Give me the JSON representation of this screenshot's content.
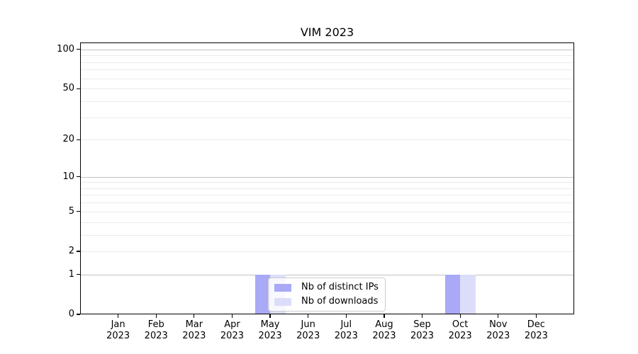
{
  "chart_data": {
    "type": "bar",
    "title": "VIM 2023",
    "categories": [
      {
        "month": "Jan",
        "year": "2023"
      },
      {
        "month": "Feb",
        "year": "2023"
      },
      {
        "month": "Mar",
        "year": "2023"
      },
      {
        "month": "Apr",
        "year": "2023"
      },
      {
        "month": "May",
        "year": "2023"
      },
      {
        "month": "Jun",
        "year": "2023"
      },
      {
        "month": "Jul",
        "year": "2023"
      },
      {
        "month": "Aug",
        "year": "2023"
      },
      {
        "month": "Sep",
        "year": "2023"
      },
      {
        "month": "Oct",
        "year": "2023"
      },
      {
        "month": "Nov",
        "year": "2023"
      },
      {
        "month": "Dec",
        "year": "2023"
      }
    ],
    "series": [
      {
        "name": "Nb of distinct IPs",
        "color": "#a9a9f7",
        "values": [
          0,
          0,
          0,
          0,
          1,
          0,
          0,
          0,
          0,
          1,
          0,
          0
        ]
      },
      {
        "name": "Nb of downloads",
        "color": "#dcdef9",
        "values": [
          0,
          0,
          0,
          0,
          1,
          0,
          0,
          0,
          0,
          1,
          0,
          0
        ]
      }
    ],
    "xlabel": "",
    "ylabel": "",
    "yscale": "log1p",
    "ylim": [
      0,
      113
    ],
    "yticks": [
      0,
      1,
      2,
      5,
      10,
      20,
      50,
      100
    ],
    "major_gridlines": [
      1,
      10,
      100
    ],
    "minor_gridlines": [
      2,
      3,
      4,
      5,
      6,
      7,
      8,
      9,
      20,
      30,
      40,
      50,
      60,
      70,
      80,
      90
    ],
    "grid": "on",
    "legend_position": "lower center inside"
  }
}
